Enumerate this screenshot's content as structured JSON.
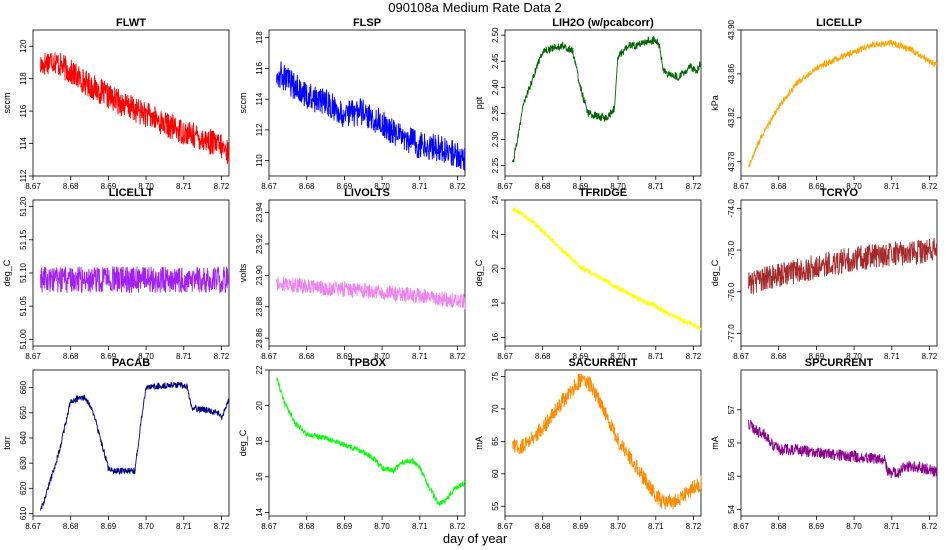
{
  "figure": {
    "title": "090108a   Medium Rate Data 2",
    "xlabel": "day of year"
  },
  "chart_data": [
    {
      "type": "line",
      "title": "FLWT",
      "ylabel": "sccm",
      "color": "#ff0000",
      "xlim": [
        8.67,
        8.722
      ],
      "ylim": [
        112,
        121
      ],
      "xticks": [
        "8.67",
        "8.68",
        "8.69",
        "8.70",
        "8.71",
        "8.72"
      ],
      "yticks": [
        "112",
        "114",
        "116",
        "118",
        "120"
      ],
      "x": [
        8.672,
        8.675,
        8.68,
        8.685,
        8.69,
        8.695,
        8.7,
        8.705,
        8.71,
        8.715,
        8.72,
        8.722
      ],
      "y": [
        118.8,
        119.2,
        118.4,
        117.6,
        116.9,
        116.3,
        115.8,
        115.2,
        114.7,
        114.3,
        113.8,
        113.4
      ],
      "noise": 1.6
    },
    {
      "type": "line",
      "title": "FLSP",
      "ylabel": "sccm",
      "color": "#0000ff",
      "xlim": [
        8.67,
        8.722
      ],
      "ylim": [
        109,
        118.5
      ],
      "xticks": [
        "8.67",
        "8.68",
        "8.69",
        "8.70",
        "8.71",
        "8.72"
      ],
      "yticks": [
        "110",
        "112",
        "114",
        "116",
        "118"
      ],
      "x": [
        8.672,
        8.675,
        8.68,
        8.685,
        8.69,
        8.695,
        8.7,
        8.705,
        8.71,
        8.715,
        8.72,
        8.722
      ],
      "y": [
        115.8,
        115.2,
        114.2,
        113.8,
        113.0,
        113.2,
        112.4,
        111.6,
        111.0,
        110.8,
        110.4,
        110.2
      ],
      "noise": 1.8
    },
    {
      "type": "line",
      "title": "LIH2O (w/pcabcorr)",
      "ylabel": "ppt",
      "color": "#006400",
      "xlim": [
        8.67,
        8.722
      ],
      "ylim": [
        2.23,
        2.51
      ],
      "xticks": [
        "8.67",
        "8.68",
        "8.69",
        "8.70",
        "8.71",
        "8.72"
      ],
      "yticks": [
        "2.25",
        "2.30",
        "2.35",
        "2.40",
        "2.45",
        "2.50"
      ],
      "x": [
        8.672,
        8.673,
        8.675,
        8.678,
        8.68,
        8.685,
        8.688,
        8.69,
        8.692,
        8.697,
        8.699,
        8.7,
        8.703,
        8.705,
        8.708,
        8.71,
        8.711,
        8.712,
        8.716,
        8.719,
        8.721,
        8.722
      ],
      "y": [
        2.25,
        2.29,
        2.37,
        2.43,
        2.47,
        2.48,
        2.47,
        2.4,
        2.35,
        2.34,
        2.36,
        2.46,
        2.48,
        2.48,
        2.49,
        2.49,
        2.48,
        2.43,
        2.42,
        2.44,
        2.43,
        2.45
      ],
      "noise": 0.015
    },
    {
      "type": "line",
      "title": "LICELLP",
      "ylabel": "kPa",
      "color": "#ffa500",
      "xlim": [
        8.67,
        8.722
      ],
      "ylim": [
        43.767,
        43.9
      ],
      "xticks": [
        "8.67",
        "8.68",
        "8.69",
        "8.70",
        "8.71",
        "8.72"
      ],
      "yticks": [
        "43.78",
        "43.82",
        "43.86",
        "43.90"
      ],
      "x": [
        8.672,
        8.675,
        8.68,
        8.685,
        8.69,
        8.695,
        8.7,
        8.705,
        8.71,
        8.715,
        8.72,
        8.722
      ],
      "y": [
        43.775,
        43.8,
        43.83,
        43.852,
        43.865,
        43.873,
        43.88,
        43.887,
        43.888,
        43.882,
        43.872,
        43.868
      ],
      "noise": 0.006
    },
    {
      "type": "line",
      "title": "LICELLT",
      "ylabel": "deg_C",
      "color": "#a020f0",
      "xlim": [
        8.67,
        8.722
      ],
      "ylim": [
        50.99,
        51.21
      ],
      "xticks": [
        "8.67",
        "8.68",
        "8.69",
        "8.70",
        "8.71",
        "8.72"
      ],
      "yticks": [
        "51.00",
        "51.05",
        "51.10",
        "51.15",
        "51.20"
      ],
      "x": [
        8.672,
        8.722
      ],
      "y": [
        51.09,
        51.09
      ],
      "noise": 0.04
    },
    {
      "type": "line",
      "title": "LIVOLTS",
      "ylabel": "volts",
      "color": "#ee82ee",
      "xlim": [
        8.67,
        8.722
      ],
      "ylim": [
        23.855,
        23.948
      ],
      "xticks": [
        "8.67",
        "8.68",
        "8.69",
        "8.70",
        "8.71",
        "8.72"
      ],
      "yticks": [
        "23.86",
        "23.88",
        "23.90",
        "23.92",
        "23.94"
      ],
      "x": [
        8.672,
        8.68,
        8.69,
        8.7,
        8.71,
        8.722
      ],
      "y": [
        23.895,
        23.893,
        23.891,
        23.889,
        23.887,
        23.883
      ],
      "noise": 0.01
    },
    {
      "type": "line",
      "title": "TFRIDGE",
      "ylabel": "deg_C",
      "color": "#ffff00",
      "xlim": [
        8.67,
        8.722
      ],
      "ylim": [
        15.5,
        24
      ],
      "xticks": [
        "8.67",
        "8.68",
        "8.69",
        "8.70",
        "8.71",
        "8.72"
      ],
      "yticks": [
        "16",
        "18",
        "20",
        "22",
        "24"
      ],
      "x": [
        8.672,
        8.675,
        8.68,
        8.685,
        8.69,
        8.695,
        8.7,
        8.705,
        8.71,
        8.715,
        8.72,
        8.722
      ],
      "y": [
        23.5,
        23.1,
        22.2,
        21.1,
        20.1,
        19.5,
        18.9,
        18.3,
        17.8,
        17.2,
        16.7,
        16.5
      ],
      "noise": 0.3
    },
    {
      "type": "line",
      "title": "TCRYO",
      "ylabel": "deg_C",
      "color": "#a52a2a",
      "xlim": [
        8.67,
        8.722
      ],
      "ylim": [
        -77.3,
        -73.8
      ],
      "xticks": [
        "8.67",
        "8.68",
        "8.69",
        "8.70",
        "8.71",
        "8.72"
      ],
      "yticks": [
        "-77.0",
        "-76.0",
        "-75.0",
        "-74.0"
      ],
      "x": [
        8.672,
        8.68,
        8.69,
        8.7,
        8.71,
        8.722
      ],
      "y": [
        -75.8,
        -75.6,
        -75.4,
        -75.2,
        -75.1,
        -75.0
      ],
      "noise": 0.6
    },
    {
      "type": "line",
      "title": "PACAB",
      "ylabel": "torr",
      "color": "#000080",
      "xlim": [
        8.67,
        8.722
      ],
      "ylim": [
        609,
        667
      ],
      "xticks": [
        "8.67",
        "8.68",
        "8.69",
        "8.70",
        "8.71",
        "8.72"
      ],
      "yticks": [
        "610",
        "620",
        "630",
        "640",
        "650",
        "660"
      ],
      "x": [
        8.672,
        8.673,
        8.677,
        8.679,
        8.68,
        8.684,
        8.686,
        8.69,
        8.691,
        8.697,
        8.699,
        8.7,
        8.706,
        8.71,
        8.711,
        8.712,
        8.716,
        8.719,
        8.72,
        8.721,
        8.722
      ],
      "y": [
        612,
        615,
        635,
        648,
        655,
        656,
        650,
        628,
        627,
        627,
        650,
        660,
        661,
        661,
        660,
        652,
        651,
        650,
        648,
        652,
        655
      ],
      "noise": 2.5
    },
    {
      "type": "line",
      "title": "TPBOX",
      "ylabel": "deg_C",
      "color": "#00ff00",
      "xlim": [
        8.67,
        8.722
      ],
      "ylim": [
        13.8,
        22
      ],
      "xticks": [
        "8.67",
        "8.68",
        "8.69",
        "8.70",
        "8.71",
        "8.72"
      ],
      "yticks": [
        "14",
        "16",
        "18",
        "20",
        "22"
      ],
      "x": [
        8.672,
        8.674,
        8.677,
        8.68,
        8.685,
        8.69,
        8.695,
        8.698,
        8.7,
        8.703,
        8.705,
        8.708,
        8.71,
        8.712,
        8.715,
        8.717,
        8.719,
        8.722
      ],
      "y": [
        21.6,
        20.2,
        19.0,
        18.4,
        18.2,
        17.8,
        17.4,
        17.0,
        16.5,
        16.3,
        16.8,
        16.9,
        16.5,
        15.6,
        14.5,
        14.7,
        15.3,
        15.7
      ],
      "noise": 0.3
    },
    {
      "type": "line",
      "title": "SACURRENT",
      "ylabel": "mA",
      "color": "#ff8c00",
      "xlim": [
        8.67,
        8.722
      ],
      "ylim": [
        53.5,
        76
      ],
      "xticks": [
        "8.67",
        "8.68",
        "8.69",
        "8.70",
        "8.71",
        "8.72"
      ],
      "yticks": [
        "55",
        "60",
        "65",
        "70",
        "75"
      ],
      "x": [
        8.672,
        8.675,
        8.68,
        8.685,
        8.69,
        8.693,
        8.697,
        8.7,
        8.705,
        8.71,
        8.713,
        8.716,
        8.719,
        8.722
      ],
      "y": [
        64,
        64.5,
        67,
        71,
        74.5,
        73.5,
        69,
        65,
        61,
        56.5,
        55.5,
        56,
        57.5,
        58.5
      ],
      "noise": 2.5
    },
    {
      "type": "line",
      "title": "SPCURRENT",
      "ylabel": "mA",
      "color": "#8b008b",
      "xlim": [
        8.67,
        8.722
      ],
      "ylim": [
        53.8,
        58.2
      ],
      "xticks": [
        "8.67",
        "8.68",
        "8.69",
        "8.70",
        "8.71",
        "8.72"
      ],
      "yticks": [
        "54",
        "55",
        "56",
        "57"
      ],
      "x": [
        8.672,
        8.674,
        8.677,
        8.678,
        8.68,
        8.685,
        8.69,
        8.7,
        8.708,
        8.709,
        8.712,
        8.713,
        8.716,
        8.72,
        8.722
      ],
      "y": [
        56.6,
        56.4,
        56.2,
        56.0,
        55.8,
        55.8,
        55.7,
        55.6,
        55.5,
        55.1,
        55.1,
        55.3,
        55.3,
        55.2,
        55.1
      ],
      "noise": 0.35
    }
  ]
}
